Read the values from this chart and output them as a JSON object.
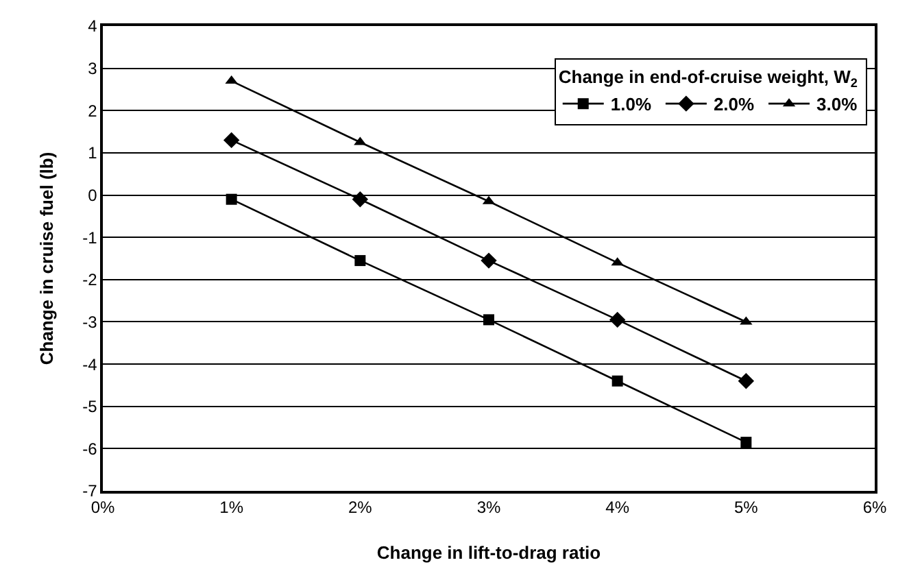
{
  "chart_data": {
    "type": "line",
    "xlabel": "Change in lift-to-drag ratio",
    "ylabel": "Change in cruise fuel (lb)",
    "legend_title": "Change in end-of-cruise weight, W$_{2}$",
    "x": [
      1,
      2,
      3,
      4,
      5
    ],
    "series": [
      {
        "name": "1.0%",
        "color": "#000000",
        "marker": "square",
        "values": [
          -0.1,
          -1.55,
          -2.95,
          -4.4,
          -5.85
        ]
      },
      {
        "name": "2.0%",
        "color": "#000000",
        "marker": "diamond",
        "values": [
          1.3,
          -0.1,
          -1.55,
          -2.95,
          -4.4
        ]
      },
      {
        "name": "3.0%",
        "color": "#000000",
        "marker": "triangle",
        "values": [
          2.7,
          1.25,
          -0.15,
          -1.6,
          -3.0
        ]
      }
    ],
    "xlim": [
      0,
      6
    ],
    "xticks": [
      {
        "value": 0,
        "label": "0%"
      },
      {
        "value": 1,
        "label": "1%"
      },
      {
        "value": 2,
        "label": "2%"
      },
      {
        "value": 3,
        "label": "3%"
      },
      {
        "value": 4,
        "label": "4%"
      },
      {
        "value": 5,
        "label": "5%"
      },
      {
        "value": 6,
        "label": "6%"
      }
    ],
    "ylim": [
      -7,
      4
    ],
    "yticks": [
      -7,
      -6,
      -5,
      -4,
      -3,
      -2,
      -1,
      0,
      1,
      2,
      3,
      4
    ],
    "grid": "y",
    "legend": "top right",
    "line_style": "solid"
  }
}
